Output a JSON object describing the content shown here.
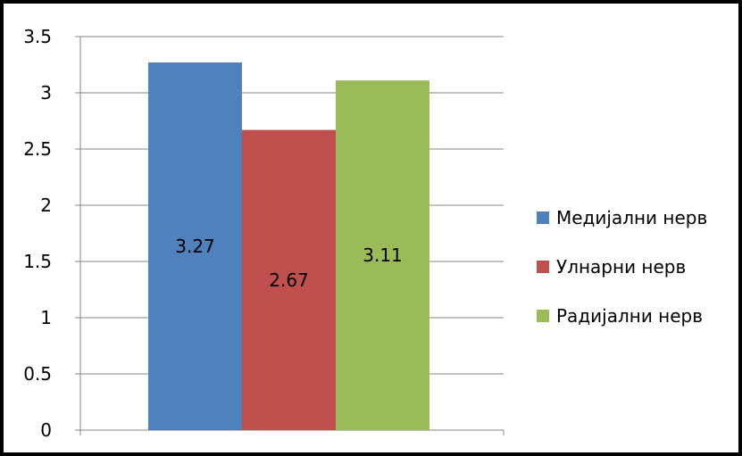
{
  "chart_data": {
    "type": "bar",
    "title": "",
    "xlabel": "",
    "ylabel": "",
    "ylim": [
      0,
      3.5
    ],
    "yticks": [
      "0",
      "0.5",
      "1",
      "1.5",
      "2",
      "2.5",
      "3",
      "3.5"
    ],
    "grid": true,
    "legend_position": "right",
    "series": [
      {
        "name": "Медијални нерв",
        "value": 3.27,
        "label": "3.27",
        "color": "#4F81BD"
      },
      {
        "name": "Улнарни нерв",
        "value": 2.67,
        "label": "2.67",
        "color": "#C0504D"
      },
      {
        "name": "Радијални нерв",
        "value": 3.11,
        "label": "3.11",
        "color": "#9BBB59"
      }
    ]
  }
}
